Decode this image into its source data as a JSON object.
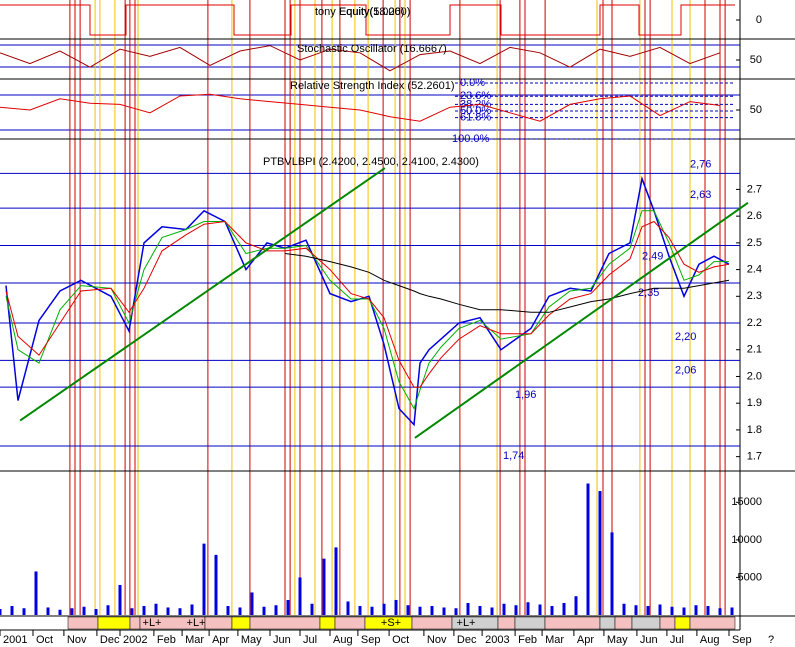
{
  "chart_data": [
    {
      "type": "line",
      "title": "tony Equity(1.0000)",
      "subtitle": "Equity(58.26)",
      "color": "#e00000",
      "x": [
        0,
        30,
        30,
        42,
        42,
        78,
        78,
        97,
        97,
        122,
        122,
        150,
        150,
        167,
        167,
        200,
        200,
        213,
        213,
        227,
        227,
        245
      ],
      "values": [
        1,
        1,
        -1,
        -1,
        1,
        1,
        -1,
        -1,
        1,
        1,
        -1,
        -1,
        1,
        1,
        -1,
        -1,
        1,
        1,
        -1,
        -1,
        1,
        1
      ],
      "xlim": [
        0,
        245
      ],
      "ylim": [
        -1.2,
        1.2
      ],
      "yticks": [
        0
      ]
    },
    {
      "type": "line",
      "title": "Stochastic Oscillator (16.6667)",
      "color": "#a00000",
      "x": [
        0,
        10,
        20,
        30,
        40,
        50,
        60,
        70,
        80,
        90,
        100,
        110,
        120,
        130,
        140,
        150,
        160,
        170,
        180,
        190,
        200,
        210,
        220,
        230,
        240
      ],
      "values": [
        70,
        40,
        75,
        30,
        80,
        60,
        85,
        35,
        75,
        90,
        50,
        80,
        70,
        20,
        65,
        75,
        40,
        85,
        70,
        30,
        80,
        60,
        85,
        40,
        70
      ],
      "xlim": [
        0,
        245
      ],
      "ylim": [
        0,
        100
      ],
      "yticks": [
        50
      ]
    },
    {
      "type": "line",
      "title": "Relative Strength Index (52.2601)",
      "color": "#e00000",
      "x": [
        0,
        10,
        20,
        30,
        40,
        50,
        60,
        70,
        80,
        90,
        100,
        110,
        120,
        130,
        140,
        150,
        160,
        170,
        180,
        190,
        200,
        210,
        220,
        230,
        240
      ],
      "values": [
        55,
        50,
        70,
        62,
        60,
        45,
        75,
        78,
        70,
        65,
        60,
        55,
        50,
        38,
        30,
        55,
        60,
        45,
        30,
        60,
        70,
        75,
        40,
        65,
        58
      ],
      "xlim": [
        0,
        245
      ],
      "ylim": [
        0,
        100
      ],
      "yticks": [
        50
      ],
      "fib_levels": [
        {
          "value": 0,
          "label": "0.0%"
        },
        {
          "value": 23.6,
          "label": "23.6%"
        },
        {
          "value": 38.2,
          "label": "38.2%"
        },
        {
          "value": 50,
          "label": "50.0%"
        },
        {
          "value": 61.8,
          "label": "61.8%"
        },
        {
          "value": 100,
          "label": "100.0%"
        }
      ]
    },
    {
      "type": "line",
      "title": "PTBVLBPI (2.4200, 2.4500, 2.4100, 2.4300)",
      "x": [
        2,
        6,
        13,
        20,
        27,
        37,
        43,
        48,
        54,
        62,
        68,
        75,
        82,
        89,
        95,
        102,
        110,
        117,
        123,
        128,
        133,
        138,
        140,
        143,
        147,
        153,
        160,
        167,
        177,
        183,
        190,
        197,
        203,
        210,
        214,
        218,
        223,
        228,
        233,
        238,
        243
      ],
      "series": [
        {
          "color": "#0000e0",
          "values": [
            2.34,
            1.91,
            2.21,
            2.32,
            2.36,
            2.3,
            2.17,
            2.5,
            2.56,
            2.55,
            2.62,
            2.58,
            2.4,
            2.5,
            2.48,
            2.51,
            2.31,
            2.28,
            2.3,
            2.12,
            1.88,
            1.82,
            2.05,
            2.1,
            2.14,
            2.2,
            2.22,
            2.1,
            2.18,
            2.3,
            2.33,
            2.32,
            2.46,
            2.5,
            2.74,
            2.62,
            2.45,
            2.3,
            2.42,
            2.45,
            2.42
          ]
        },
        {
          "color": "#00b000",
          "values": [
            2.3,
            2.1,
            2.05,
            2.25,
            2.34,
            2.33,
            2.2,
            2.4,
            2.52,
            2.55,
            2.58,
            2.58,
            2.46,
            2.48,
            2.48,
            2.49,
            2.36,
            2.29,
            2.29,
            2.18,
            1.98,
            1.88,
            1.95,
            2.05,
            2.11,
            2.18,
            2.21,
            2.14,
            2.16,
            2.26,
            2.32,
            2.33,
            2.42,
            2.48,
            2.62,
            2.62,
            2.5,
            2.36,
            2.38,
            2.43,
            2.43
          ]
        },
        {
          "color": "#e00000",
          "values": [
            2.32,
            2.15,
            2.08,
            2.2,
            2.32,
            2.33,
            2.24,
            2.33,
            2.47,
            2.53,
            2.57,
            2.58,
            2.5,
            2.47,
            2.47,
            2.48,
            2.4,
            2.31,
            2.29,
            2.22,
            2.06,
            1.96,
            1.96,
            2.01,
            2.07,
            2.14,
            2.19,
            2.16,
            2.16,
            2.23,
            2.29,
            2.31,
            2.38,
            2.44,
            2.56,
            2.58,
            2.52,
            2.42,
            2.39,
            2.41,
            2.42
          ]
        },
        {
          "color": "#000000",
          "values": [
            null,
            null,
            null,
            null,
            null,
            null,
            null,
            null,
            null,
            null,
            null,
            null,
            null,
            null,
            2.46,
            2.45,
            2.43,
            2.41,
            2.39,
            2.36,
            2.34,
            2.32,
            2.31,
            2.3,
            2.29,
            2.27,
            2.25,
            2.25,
            2.24,
            2.24,
            2.26,
            2.28,
            2.29,
            2.31,
            2.32,
            2.33,
            2.33,
            2.33,
            2.34,
            2.35,
            2.36
          ]
        }
      ],
      "xlim": [
        0,
        245
      ],
      "ylim": [
        1.65,
        2.84
      ],
      "yticks": [
        1.7,
        1.8,
        1.9,
        {
          "value": 2,
          "label": "2.0"
        },
        2.1,
        2.2,
        2.3,
        2.4,
        2.5,
        2.6,
        2.7
      ],
      "levels": [
        {
          "value": 2.76,
          "label": "2,76"
        },
        {
          "value": 2.63,
          "label": "2,63"
        },
        {
          "value": 2.49,
          "label": "2,49"
        },
        {
          "value": 2.35,
          "label": "2,35"
        },
        {
          "value": 2.2,
          "label": "2,20"
        },
        {
          "value": 2.06,
          "label": "2,06"
        },
        {
          "value": 1.96,
          "label": "1,96"
        },
        {
          "value": 1.74,
          "label": "1,74"
        }
      ],
      "trendlines": [
        {
          "color": "#008800",
          "x": [
            6.7,
            128.3
          ],
          "values": [
            1.835,
            2.78
          ]
        },
        {
          "color": "#008800",
          "x": [
            138.3,
            249.3
          ],
          "values": [
            1.77,
            2.65
          ]
        }
      ],
      "signal_lines": [
        {
          "color": "#d00000",
          "x": [
            23.3,
            25,
            26.7,
            41.7,
            43.3,
            45,
            69.3,
            83.3,
            95,
            96.7,
            100,
            107.3,
            113.3,
            127.7,
            133.3,
            136.7,
            153.3,
            166.7,
            173.3,
            175,
            181.7,
            201,
            204,
            215,
            216.7,
            230,
            235,
            240,
            241.7
          ]
        },
        {
          "color": "#f2c200",
          "x": [
            31.7,
            33.3,
            38.3,
            46,
            77.3,
            98.3,
            105,
            110.7,
            118.3,
            122.7,
            131.7,
            135,
            165.7,
            199,
            213.3,
            224,
            230
          ]
        }
      ]
    },
    {
      "type": "bar",
      "color": "#0000e0",
      "x": [
        0,
        4,
        8,
        12,
        16,
        20,
        24,
        28,
        32,
        36,
        40,
        44,
        48,
        52,
        56,
        60,
        64,
        68,
        72,
        76,
        80,
        84,
        88,
        92,
        96,
        100,
        104,
        108,
        112,
        116,
        120,
        124,
        128,
        132,
        136,
        140,
        144,
        148,
        152,
        156,
        160,
        164,
        168,
        172,
        176,
        180,
        184,
        188,
        192,
        196,
        200,
        204,
        208,
        212,
        216,
        220,
        224,
        228,
        232,
        236,
        240,
        244
      ],
      "values": [
        800,
        1200,
        900,
        5800,
        1000,
        700,
        900,
        1100,
        800,
        1300,
        4000,
        900,
        1200,
        1500,
        1000,
        900,
        1400,
        9500,
        8000,
        1200,
        1000,
        3000,
        1100,
        1300,
        2000,
        5000,
        1500,
        7500,
        9000,
        1800,
        1200,
        1100,
        1500,
        2000,
        1300,
        1100,
        1200,
        1000,
        900,
        1600,
        1200,
        1000,
        1500,
        1300,
        1700,
        1400,
        1200,
        1600,
        2500,
        17500,
        16500,
        11000,
        1500,
        1300,
        1200,
        1400,
        1100,
        1000,
        1300,
        1200,
        900,
        1000
      ],
      "xlim": [
        0,
        245
      ],
      "ylim": [
        0,
        19300
      ],
      "yticks": [
        5000,
        10000,
        15000
      ],
      "xticks": [
        {
          "value": 0,
          "label": "2001"
        },
        {
          "value": 11,
          "label": "Oct"
        },
        {
          "value": 21.3,
          "label": "Nov"
        },
        {
          "value": 32.3,
          "label": "Dec"
        },
        {
          "value": 40,
          "label": "2002"
        },
        {
          "value": 51.3,
          "label": "Feb"
        },
        {
          "value": 60.7,
          "label": "Mar"
        },
        {
          "value": 69.7,
          "label": "Apr"
        },
        {
          "value": 79.3,
          "label": "May"
        },
        {
          "value": 90,
          "label": "Jun"
        },
        {
          "value": 100,
          "label": "Jul"
        },
        {
          "value": 110,
          "label": "Aug"
        },
        {
          "value": 119.3,
          "label": "Sep"
        },
        {
          "value": 129.7,
          "label": "Oct"
        },
        {
          "value": 141.3,
          "label": "Nov"
        },
        {
          "value": 151.3,
          "label": "Dec"
        },
        {
          "value": 160.7,
          "label": "2003"
        },
        {
          "value": 171.7,
          "label": "Feb"
        },
        {
          "value": 180.7,
          "label": "Mar"
        },
        {
          "value": 191.3,
          "label": "Apr"
        },
        {
          "value": 201.3,
          "label": "May"
        },
        {
          "value": 212.3,
          "label": "Jun"
        },
        {
          "value": 222.3,
          "label": "Jul"
        },
        {
          "value": 232.3,
          "label": "Aug"
        },
        {
          "value": 243,
          "label": "Sep"
        }
      ],
      "regime_labels": [
        "+L+",
        "+L+",
        "+S+",
        "+L+"
      ],
      "corner_label": "?"
    }
  ]
}
